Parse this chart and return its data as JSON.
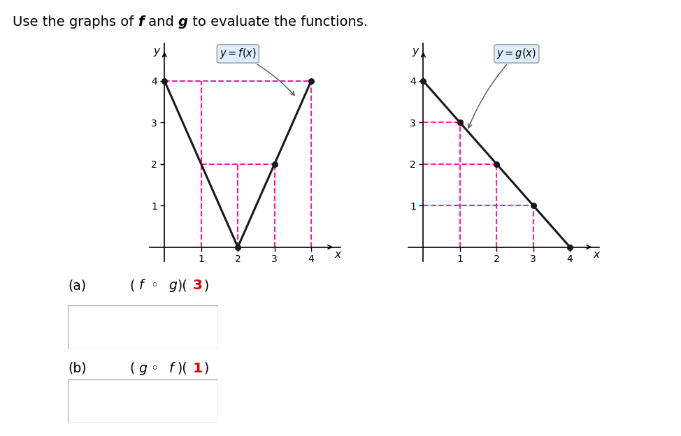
{
  "title_parts": [
    "Use the graphs of ",
    "f",
    " and ",
    "g",
    " to evaluate the functions."
  ],
  "f_points": [
    [
      0,
      4
    ],
    [
      2,
      0
    ],
    [
      3,
      2
    ],
    [
      4,
      4
    ]
  ],
  "g_points": [
    [
      0,
      4
    ],
    [
      1,
      3
    ],
    [
      2,
      2
    ],
    [
      3,
      1
    ],
    [
      4,
      0
    ]
  ],
  "line_color": "#1a1a1a",
  "dashed_color": "#ff1aaa",
  "dot_color": "#1a1a1a",
  "label_f": "$y = f(x)$",
  "label_g": "$y = g(x)$",
  "box_fill": "#ddeeff",
  "box_edge": "#888888",
  "answer_box_edge": "#aaaaaa",
  "red_color": "#dd0000",
  "text_fontsize": 14,
  "graph_fontsize": 11
}
